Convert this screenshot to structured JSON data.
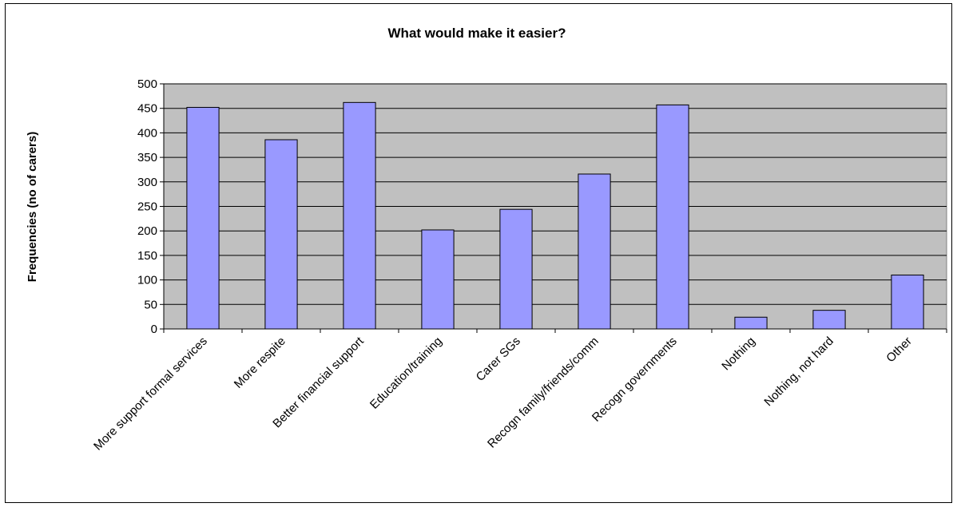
{
  "chart_data": {
    "type": "bar",
    "title": "What would make it easier?",
    "xlabel": "",
    "ylabel": "Frequencies (no of carers)",
    "ylim": [
      0,
      500
    ],
    "ytick_step": 50,
    "grid": true,
    "legend": "none",
    "categories": [
      "More support formal services",
      "More respite",
      "Better financial support",
      "Education/training",
      "Carer SGs",
      "Recogn family/friends/comm",
      "Recogn governments",
      "Nothing",
      "Nothing, not hard",
      "Other"
    ],
    "values": [
      452,
      386,
      462,
      202,
      244,
      316,
      457,
      24,
      38,
      110
    ],
    "colors": {
      "bar_fill": "#9999ff",
      "plot_background": "#c0c0c0",
      "gridline": "#000000"
    }
  }
}
